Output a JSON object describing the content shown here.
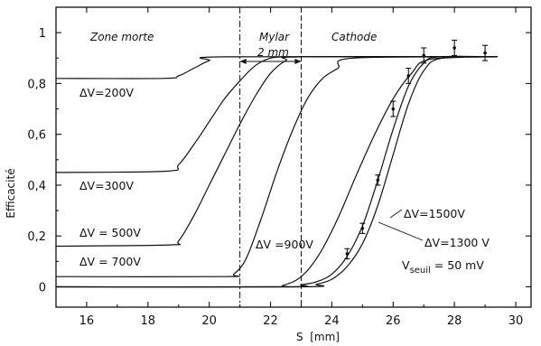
{
  "chart_data": {
    "type": "line",
    "xlabel": "S  [mm]",
    "ylabel": "Efficacité",
    "xlim": [
      15,
      30.5
    ],
    "ylim": [
      -0.08,
      1.1
    ],
    "xticks": [
      16,
      18,
      20,
      22,
      24,
      26,
      28,
      30
    ],
    "yticks": [
      0,
      0.2,
      0.4,
      0.6,
      0.8,
      1
    ],
    "ytick_labels": [
      "0",
      "0,2",
      "0,4",
      "0,6",
      "0,8",
      "1"
    ],
    "regions": [
      {
        "label": "Zone morte"
      },
      {
        "label": "Mylar"
      },
      {
        "label": "2 mm"
      },
      {
        "label": "Cathode"
      }
    ],
    "boundaries": [
      21,
      23
    ],
    "series": [
      {
        "name": "ΔV=200V",
        "x": [
          15,
          18.5,
          19,
          19.5,
          20,
          20.5,
          29.4
        ],
        "y": [
          0.82,
          0.82,
          0.83,
          0.86,
          0.89,
          0.905,
          0.905
        ]
      },
      {
        "name": "ΔV=300V",
        "x": [
          15,
          18.6,
          19,
          19.5,
          20,
          20.5,
          21,
          21.5,
          22,
          22.5,
          23,
          29.4
        ],
        "y": [
          0.45,
          0.455,
          0.48,
          0.56,
          0.65,
          0.74,
          0.81,
          0.87,
          0.9,
          0.905,
          0.905,
          0.905
        ]
      },
      {
        "name": "ΔV = 500V",
        "x": [
          15,
          18.7,
          19,
          19.5,
          20,
          20.5,
          21,
          21.5,
          22,
          22.5,
          23,
          29.4
        ],
        "y": [
          0.16,
          0.165,
          0.18,
          0.28,
          0.4,
          0.52,
          0.64,
          0.75,
          0.84,
          0.89,
          0.905,
          0.905
        ]
      },
      {
        "name": "ΔV = 700V",
        "x": [
          15,
          20.5,
          20.8,
          21.2,
          21.7,
          22.2,
          22.7,
          23.2,
          23.7,
          24.2,
          24.7,
          29.4
        ],
        "y": [
          0.04,
          0.04,
          0.05,
          0.11,
          0.27,
          0.45,
          0.61,
          0.74,
          0.82,
          0.86,
          0.9,
          0.905
        ]
      },
      {
        "name": "ΔV =900V",
        "x": [
          15,
          22,
          22.4,
          23,
          23.6,
          24.2,
          24.8,
          25.4,
          26,
          26.6,
          27.2,
          29.4
        ],
        "y": [
          0,
          0,
          0.005,
          0.04,
          0.13,
          0.27,
          0.44,
          0.6,
          0.74,
          0.84,
          0.895,
          0.905
        ]
      },
      {
        "name": "ΔV=1500V",
        "x": [
          15,
          22.5,
          23,
          23.5,
          24,
          24.5,
          25,
          25.5,
          26,
          26.5,
          27,
          27.5,
          29.4
        ],
        "y": [
          0,
          0,
          0.008,
          0.02,
          0.05,
          0.12,
          0.24,
          0.42,
          0.62,
          0.79,
          0.88,
          0.905,
          0.905
        ]
      },
      {
        "name": "ΔV=1300 V",
        "x": [
          15,
          23,
          23.5,
          24,
          24.5,
          25,
          25.5,
          26,
          26.5,
          27,
          27.6,
          29.4
        ],
        "y": [
          0,
          0,
          0.01,
          0.03,
          0.08,
          0.17,
          0.32,
          0.52,
          0.72,
          0.85,
          0.9,
          0.905
        ]
      }
    ],
    "measured_points": [
      {
        "x": 24.5,
        "y": 0.13,
        "err": 0.02
      },
      {
        "x": 25,
        "y": 0.23,
        "err": 0.02
      },
      {
        "x": 25.5,
        "y": 0.42,
        "err": 0.02
      },
      {
        "x": 26,
        "y": 0.7,
        "err": 0.03
      },
      {
        "x": 26.5,
        "y": 0.83,
        "err": 0.03
      },
      {
        "x": 27,
        "y": 0.91,
        "err": 0.03
      },
      {
        "x": 28,
        "y": 0.94,
        "err": 0.03
      },
      {
        "x": 29,
        "y": 0.92,
        "err": 0.03
      }
    ],
    "annotation": {
      "prefix": "V",
      "subscript": "seuil",
      "suffix": " = 50 mV"
    }
  }
}
